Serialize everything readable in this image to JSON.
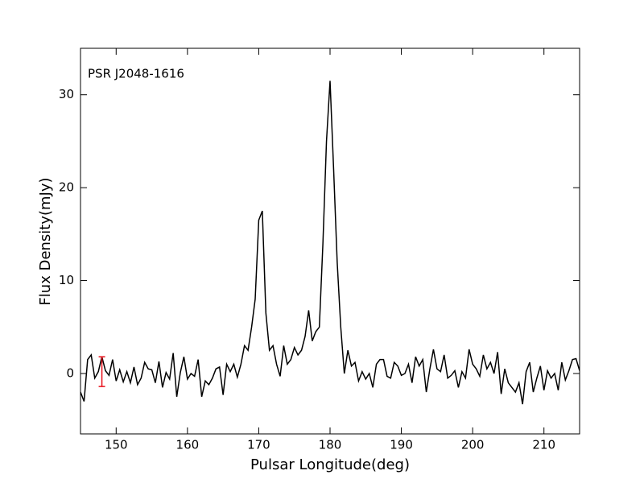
{
  "chart_data": {
    "type": "line",
    "annotation": "PSR J2048-1616",
    "xlabel": "Pulsar Longitude(deg)",
    "ylabel": "Flux Density(mJy)",
    "xlim": [
      145,
      215
    ],
    "ylim": [
      -6.5,
      35
    ],
    "xticks": [
      150,
      160,
      170,
      180,
      190,
      200,
      210
    ],
    "yticks": [
      0,
      10,
      20,
      30
    ],
    "grid": false,
    "x": [
      145,
      145.5,
      146,
      146.5,
      147,
      147.5,
      148,
      148.5,
      149,
      149.5,
      150,
      150.5,
      151,
      151.5,
      152,
      152.5,
      153,
      153.5,
      154,
      154.5,
      155,
      155.5,
      156,
      156.5,
      157,
      157.5,
      158,
      158.5,
      159,
      159.5,
      160,
      160.5,
      161,
      161.5,
      162,
      162.5,
      163,
      163.5,
      164,
      164.5,
      165,
      165.5,
      166,
      166.5,
      167,
      167.5,
      168,
      168.5,
      169,
      169.5,
      170,
      170.5,
      171,
      171.5,
      172,
      172.5,
      173,
      173.5,
      174,
      174.5,
      175,
      175.5,
      176,
      176.5,
      177,
      177.5,
      178,
      178.5,
      179,
      179.5,
      180,
      180.5,
      181,
      181.5,
      182,
      182.5,
      183,
      183.5,
      184,
      184.5,
      185,
      185.5,
      186,
      186.5,
      187,
      187.5,
      188,
      188.5,
      189,
      189.5,
      190,
      190.5,
      191,
      191.5,
      192,
      192.5,
      193,
      193.5,
      194,
      194.5,
      195,
      195.5,
      196,
      196.5,
      197,
      197.5,
      198,
      198.5,
      199,
      199.5,
      200,
      200.5,
      201,
      201.5,
      202,
      202.5,
      203,
      203.5,
      204,
      204.5,
      205,
      205.5,
      206,
      206.5,
      207,
      207.5,
      208,
      208.5,
      209,
      209.5,
      210,
      210.5,
      211,
      211.5,
      212,
      212.5,
      213,
      213.5,
      214,
      214.5,
      215
    ],
    "series": [
      {
        "color": "#000000",
        "values": [
          -2.0,
          -3.0,
          1.5,
          2.0,
          -0.5,
          0.2,
          1.8,
          0.3,
          -0.2,
          1.5,
          -0.8,
          0.4,
          -0.9,
          0.2,
          -1.0,
          0.7,
          -1.2,
          -0.5,
          1.2,
          0.5,
          0.4,
          -1.0,
          1.3,
          -1.5,
          0.1,
          -0.6,
          2.2,
          -2.5,
          0.1,
          1.8,
          -0.6,
          0.0,
          -0.3,
          1.5,
          -2.5,
          -0.8,
          -1.2,
          -0.5,
          0.5,
          0.7,
          -2.3,
          1.0,
          0.2,
          1.0,
          -0.4,
          1.0,
          3.0,
          2.5,
          5.0,
          8.0,
          16.5,
          17.5,
          6.5,
          2.5,
          3.0,
          1.0,
          -0.3,
          3.0,
          1.0,
          1.5,
          2.8,
          2.0,
          2.5,
          4.0,
          6.8,
          3.5,
          4.5,
          5.0,
          14.0,
          25.0,
          31.5,
          22.0,
          12.0,
          5.0,
          0.0,
          2.5,
          0.8,
          1.2,
          -0.8,
          0.2,
          -0.6,
          0.0,
          -1.5,
          1.0,
          1.5,
          1.5,
          -0.3,
          -0.5,
          1.2,
          0.8,
          -0.2,
          0.0,
          1.0,
          -1.0,
          1.8,
          0.8,
          1.5,
          -2.0,
          0.5,
          2.6,
          0.5,
          0.2,
          2.0,
          -0.5,
          -0.2,
          0.3,
          -1.5,
          0.2,
          -0.5,
          2.6,
          1.0,
          0.5,
          -0.3,
          2.0,
          0.5,
          1.2,
          0.0,
          2.3,
          -2.2,
          0.5,
          -1.0,
          -1.5,
          -2.0,
          -1.0,
          -3.3,
          0.2,
          1.2,
          -2.0,
          -0.5,
          0.8,
          -1.8,
          0.3,
          -0.5,
          0.0,
          -1.8,
          1.2,
          -0.7,
          0.3,
          1.5,
          1.6,
          0.3
        ]
      }
    ],
    "error_bar": {
      "x": 148,
      "y": 0.2,
      "error": 1.6,
      "color": "#e8101a"
    }
  }
}
